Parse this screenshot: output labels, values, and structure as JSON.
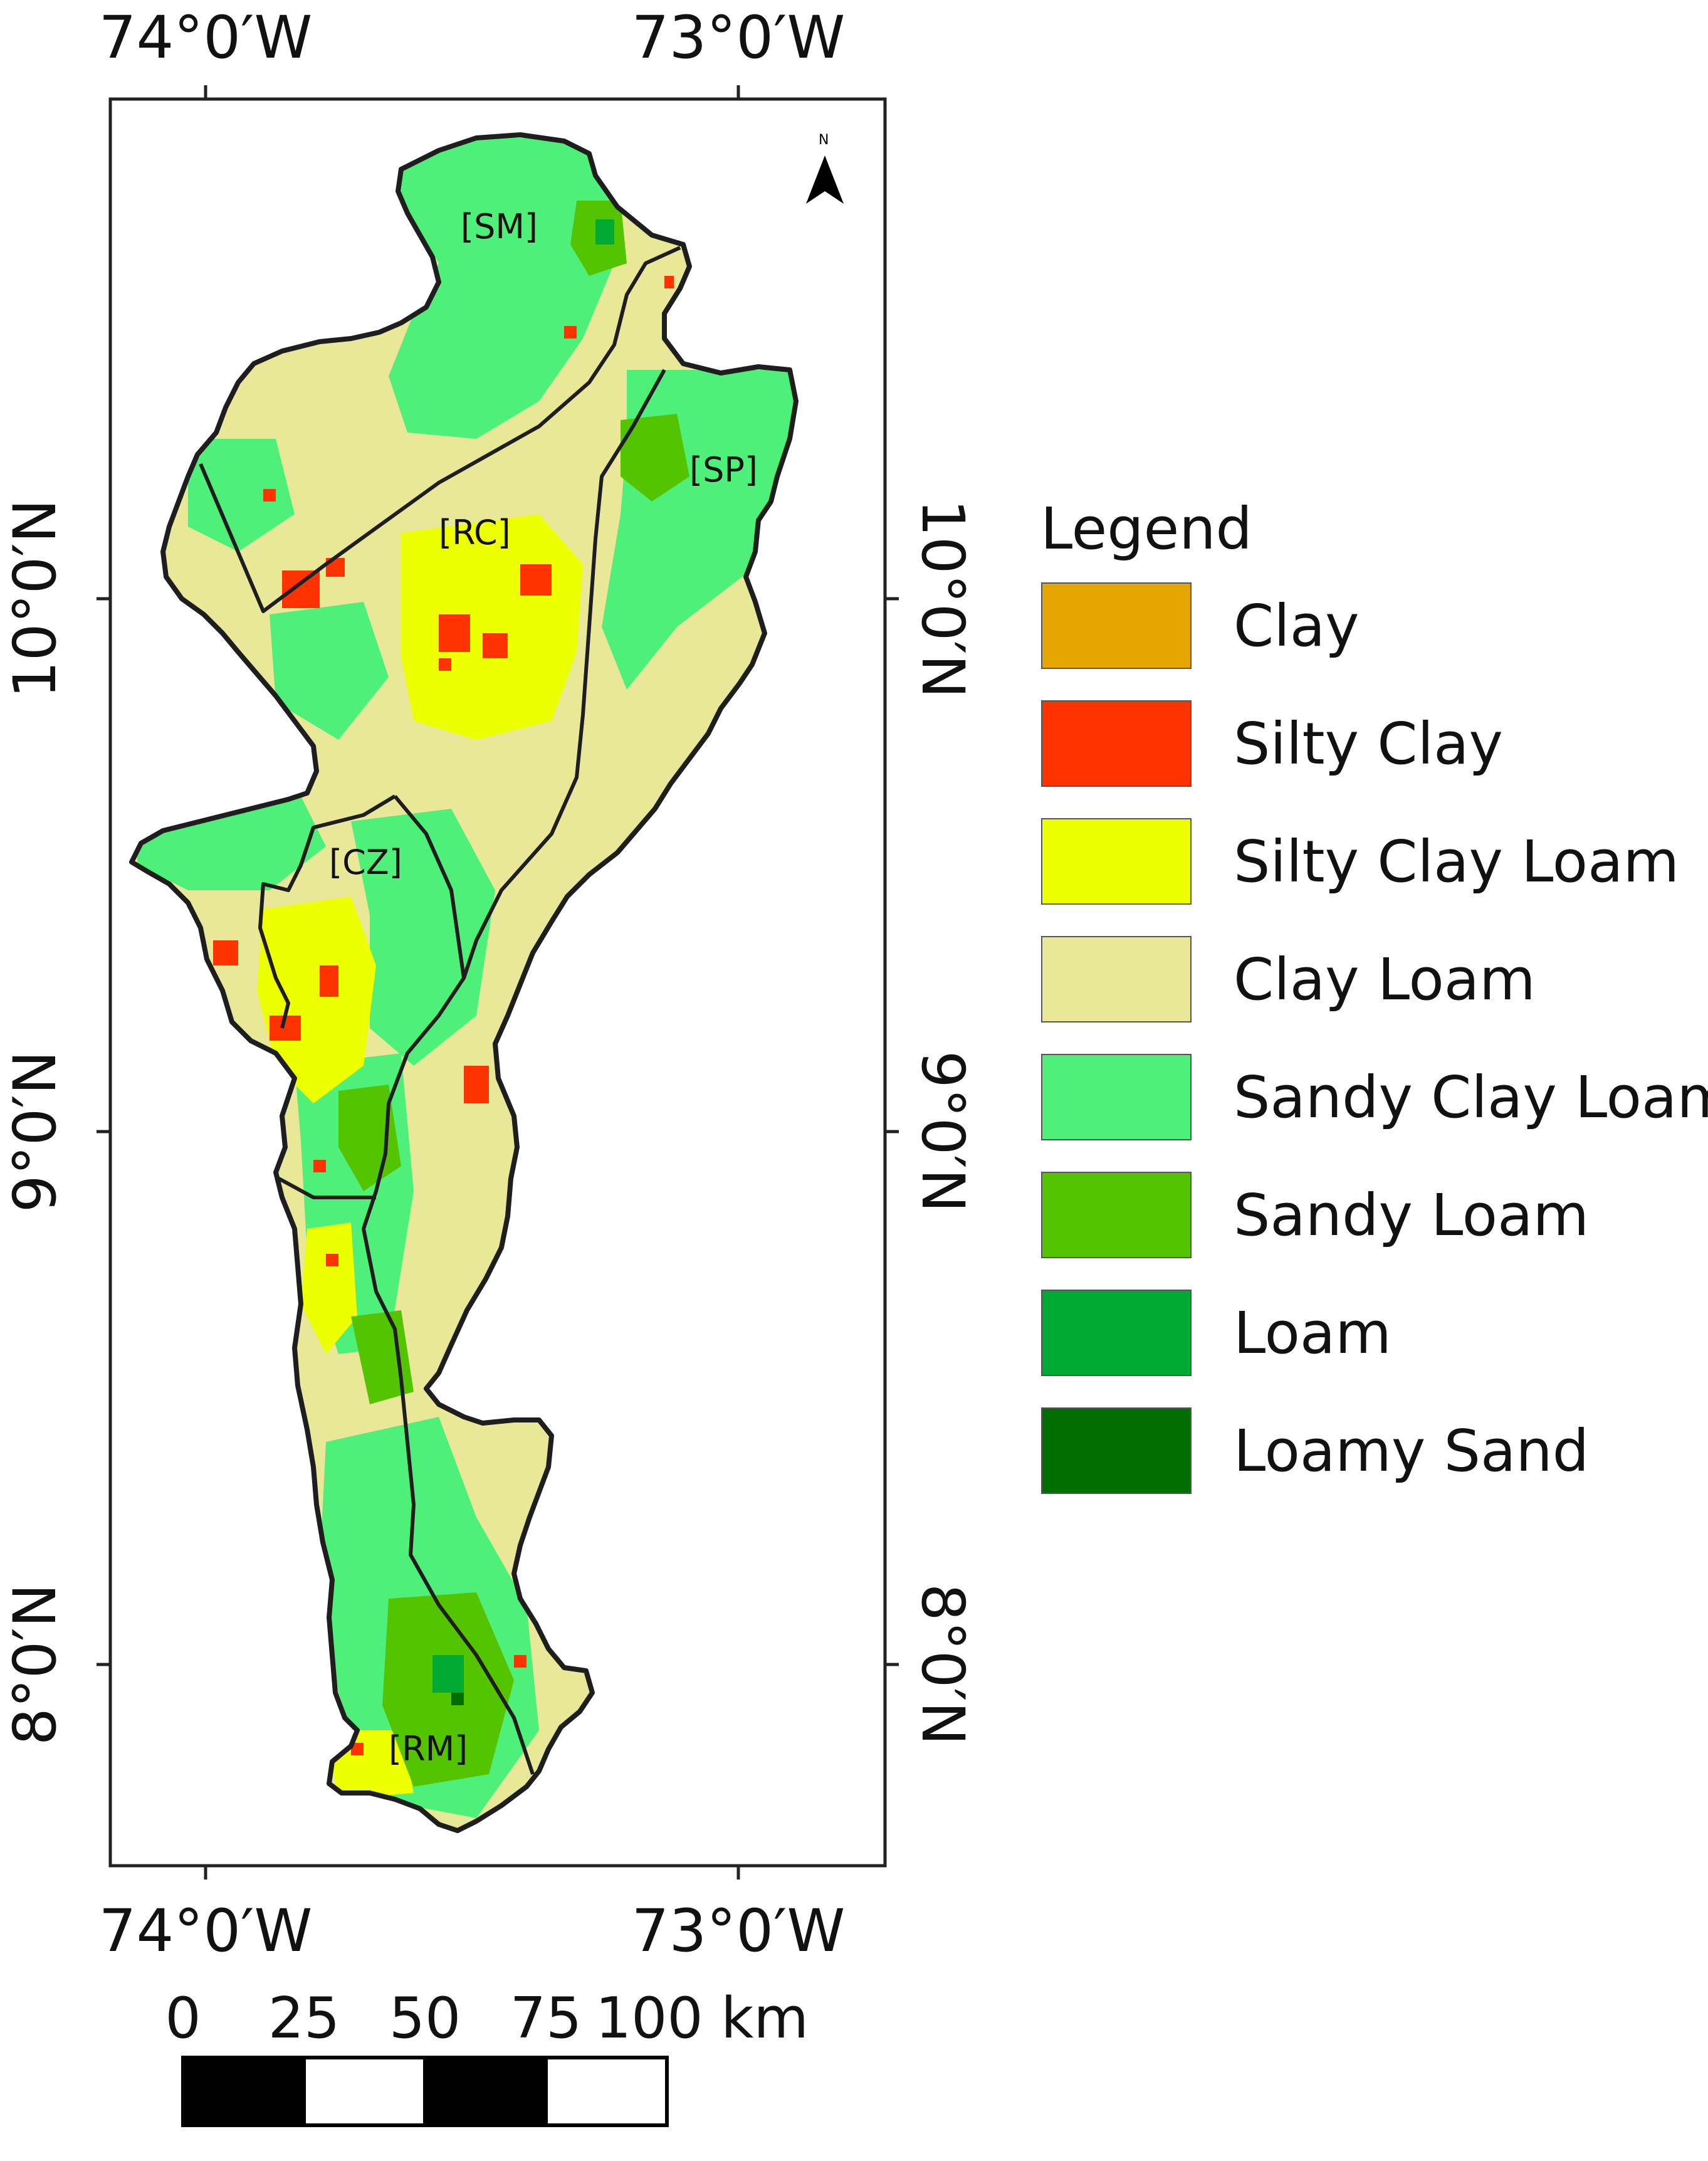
{
  "map": {
    "top_ticks": [
      "74°0′W",
      "73°0′W"
    ],
    "bottom_ticks": [
      "74°0′W",
      "73°0′W"
    ],
    "left_ticks": [
      "10°0′N",
      "9°0′N",
      "8°0′N"
    ],
    "right_ticks": [
      "10°0′N",
      "9°0′N",
      "8°0′N"
    ],
    "regions": [
      "[SM]",
      "[SP]",
      "[RC]",
      "[CZ]",
      "[RM]"
    ],
    "north_arrow": {
      "icon": "north-arrow-icon",
      "letter": "N"
    }
  },
  "legend": {
    "title": "Legend",
    "items": [
      {
        "label": "Clay",
        "color": "#E5A500"
      },
      {
        "label": "Silty Clay",
        "color": "#FF3300"
      },
      {
        "label": "Silty Clay Loam",
        "color": "#EEFF00"
      },
      {
        "label": "Clay Loam",
        "color": "#E8E898"
      },
      {
        "label": "Sandy Clay Loam",
        "color": "#4FF07A"
      },
      {
        "label": "Sandy Loam",
        "color": "#55C400"
      },
      {
        "label": "Loam",
        "color": "#00AA33"
      },
      {
        "label": "Loamy Sand",
        "color": "#006E00"
      }
    ]
  },
  "scale_bar": {
    "labels": [
      "0",
      "25",
      "50",
      "75",
      "100 km"
    ]
  }
}
